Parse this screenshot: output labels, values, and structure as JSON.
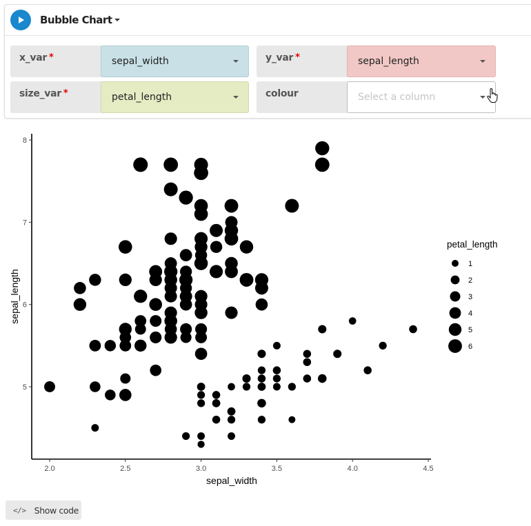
{
  "header": {
    "title": "Bubble Chart",
    "run_icon": "play-icon",
    "title_menu_icon": "caret-down-icon"
  },
  "fields": {
    "x_var": {
      "label": "x_var",
      "required": true,
      "required_mark": "*",
      "value": "sepal_width",
      "color": "#c9e0e6"
    },
    "y_var": {
      "label": "y_var",
      "required": true,
      "required_mark": "*",
      "value": "sepal_length",
      "color": "#f1c8c6"
    },
    "size_var": {
      "label": "size_var",
      "required": true,
      "required_mark": "*",
      "value": "petal_length",
      "color": "#e5ebc3"
    },
    "colour": {
      "label": "colour",
      "required": false,
      "value": "",
      "placeholder": "Select a column",
      "color": "#ffffff"
    }
  },
  "footer": {
    "show_code_label": "Show code",
    "code_icon": "</>"
  },
  "colors": {
    "accent": "#1a87cf",
    "required": "#e00000",
    "point": "#000000"
  },
  "chart_data": {
    "type": "scatter",
    "title": "",
    "xlabel": "sepal_width",
    "ylabel": "sepal_length",
    "xlim": [
      1.88,
      4.52
    ],
    "ylim": [
      4.2,
      8.08
    ],
    "xticks": [
      "2.0",
      "2.5",
      "3.0",
      "3.5",
      "4.0",
      "4.5"
    ],
    "xtick_values": [
      2.0,
      2.5,
      3.0,
      3.5,
      4.0,
      4.5
    ],
    "yticks": [
      "5",
      "6",
      "7",
      "8"
    ],
    "ytick_values": [
      5,
      6,
      7,
      8
    ],
    "grid": false,
    "size_legend": {
      "title": "petal_length",
      "position": "right",
      "entries": [
        1,
        2,
        3,
        4,
        5,
        6
      ]
    },
    "points": [
      {
        "x": 2.6,
        "y": 7.7,
        "size": 6.9
      },
      {
        "x": 2.8,
        "y": 7.7,
        "size": 6.7
      },
      {
        "x": 3.0,
        "y": 7.7,
        "size": 6.1
      },
      {
        "x": 3.0,
        "y": 7.6,
        "size": 6.6
      },
      {
        "x": 3.8,
        "y": 7.9,
        "size": 6.4
      },
      {
        "x": 3.8,
        "y": 7.7,
        "size": 6.7
      },
      {
        "x": 2.8,
        "y": 7.4,
        "size": 6.1
      },
      {
        "x": 2.9,
        "y": 7.3,
        "size": 6.3
      },
      {
        "x": 3.0,
        "y": 7.2,
        "size": 5.8
      },
      {
        "x": 3.0,
        "y": 7.1,
        "size": 5.9
      },
      {
        "x": 3.2,
        "y": 7.2,
        "size": 6.0
      },
      {
        "x": 3.6,
        "y": 7.2,
        "size": 6.1
      },
      {
        "x": 3.1,
        "y": 6.9,
        "size": 5.4
      },
      {
        "x": 3.2,
        "y": 6.9,
        "size": 5.7
      },
      {
        "x": 3.2,
        "y": 7.0,
        "size": 4.7
      },
      {
        "x": 3.2,
        "y": 6.8,
        "size": 5.9
      },
      {
        "x": 2.8,
        "y": 6.8,
        "size": 4.8
      },
      {
        "x": 3.0,
        "y": 6.8,
        "size": 5.5
      },
      {
        "x": 3.0,
        "y": 6.7,
        "size": 5.0
      },
      {
        "x": 3.1,
        "y": 6.7,
        "size": 4.4
      },
      {
        "x": 3.0,
        "y": 6.6,
        "size": 4.4
      },
      {
        "x": 2.9,
        "y": 6.6,
        "size": 4.6
      },
      {
        "x": 3.0,
        "y": 6.5,
        "size": 5.8
      },
      {
        "x": 2.8,
        "y": 6.5,
        "size": 4.6
      },
      {
        "x": 3.3,
        "y": 6.7,
        "size": 5.7
      },
      {
        "x": 2.5,
        "y": 6.7,
        "size": 5.8
      },
      {
        "x": 3.2,
        "y": 6.5,
        "size": 5.1
      },
      {
        "x": 3.2,
        "y": 6.4,
        "size": 5.3
      },
      {
        "x": 2.7,
        "y": 6.4,
        "size": 5.3
      },
      {
        "x": 2.8,
        "y": 6.4,
        "size": 5.6
      },
      {
        "x": 2.9,
        "y": 6.4,
        "size": 4.3
      },
      {
        "x": 3.1,
        "y": 6.4,
        "size": 5.5
      },
      {
        "x": 2.5,
        "y": 6.3,
        "size": 4.9
      },
      {
        "x": 2.3,
        "y": 6.3,
        "size": 4.4
      },
      {
        "x": 2.7,
        "y": 6.3,
        "size": 4.9
      },
      {
        "x": 2.8,
        "y": 6.3,
        "size": 5.1
      },
      {
        "x": 2.9,
        "y": 6.3,
        "size": 5.6
      },
      {
        "x": 3.3,
        "y": 6.3,
        "size": 6.0
      },
      {
        "x": 3.4,
        "y": 6.3,
        "size": 5.6
      },
      {
        "x": 3.4,
        "y": 6.2,
        "size": 5.4
      },
      {
        "x": 2.2,
        "y": 6.2,
        "size": 4.5
      },
      {
        "x": 2.8,
        "y": 6.2,
        "size": 4.8
      },
      {
        "x": 2.9,
        "y": 6.2,
        "size": 4.3
      },
      {
        "x": 2.8,
        "y": 6.1,
        "size": 4.7
      },
      {
        "x": 2.6,
        "y": 6.1,
        "size": 5.6
      },
      {
        "x": 3.0,
        "y": 6.1,
        "size": 4.9
      },
      {
        "x": 2.8,
        "y": 6.1,
        "size": 4.0
      },
      {
        "x": 2.9,
        "y": 6.1,
        "size": 4.7
      },
      {
        "x": 2.2,
        "y": 6.0,
        "size": 5.0
      },
      {
        "x": 2.7,
        "y": 6.0,
        "size": 5.1
      },
      {
        "x": 2.9,
        "y": 6.0,
        "size": 4.5
      },
      {
        "x": 3.0,
        "y": 6.0,
        "size": 4.8
      },
      {
        "x": 3.4,
        "y": 6.0,
        "size": 4.5
      },
      {
        "x": 2.8,
        "y": 5.9,
        "size": 4.8
      },
      {
        "x": 3.0,
        "y": 5.9,
        "size": 5.1
      },
      {
        "x": 3.2,
        "y": 5.9,
        "size": 4.8
      },
      {
        "x": 2.7,
        "y": 5.8,
        "size": 3.9
      },
      {
        "x": 2.6,
        "y": 5.8,
        "size": 4.0
      },
      {
        "x": 2.8,
        "y": 5.8,
        "size": 5.1
      },
      {
        "x": 2.7,
        "y": 5.8,
        "size": 4.1
      },
      {
        "x": 2.5,
        "y": 5.7,
        "size": 5.0
      },
      {
        "x": 2.6,
        "y": 5.7,
        "size": 3.5
      },
      {
        "x": 2.8,
        "y": 5.7,
        "size": 4.5
      },
      {
        "x": 2.9,
        "y": 5.7,
        "size": 4.2
      },
      {
        "x": 3.0,
        "y": 5.7,
        "size": 4.2
      },
      {
        "x": 2.5,
        "y": 5.6,
        "size": 3.9
      },
      {
        "x": 2.7,
        "y": 5.6,
        "size": 4.2
      },
      {
        "x": 2.8,
        "y": 5.6,
        "size": 4.9
      },
      {
        "x": 2.9,
        "y": 5.6,
        "size": 3.6
      },
      {
        "x": 3.0,
        "y": 5.6,
        "size": 4.1
      },
      {
        "x": 2.3,
        "y": 5.5,
        "size": 4.0
      },
      {
        "x": 2.4,
        "y": 5.5,
        "size": 3.8
      },
      {
        "x": 2.5,
        "y": 5.5,
        "size": 4.0
      },
      {
        "x": 2.6,
        "y": 5.5,
        "size": 4.4
      },
      {
        "x": 3.0,
        "y": 5.4,
        "size": 4.5
      },
      {
        "x": 2.7,
        "y": 5.2,
        "size": 3.9
      },
      {
        "x": 2.5,
        "y": 5.1,
        "size": 3.0
      },
      {
        "x": 2.0,
        "y": 5.0,
        "size": 3.5
      },
      {
        "x": 2.3,
        "y": 5.0,
        "size": 3.3
      },
      {
        "x": 2.4,
        "y": 4.9,
        "size": 3.3
      },
      {
        "x": 2.5,
        "y": 4.9,
        "size": 4.5
      },
      {
        "x": 2.3,
        "y": 4.5,
        "size": 1.3
      },
      {
        "x": 4.4,
        "y": 5.7,
        "size": 1.5
      },
      {
        "x": 4.0,
        "y": 5.8,
        "size": 1.2
      },
      {
        "x": 3.8,
        "y": 5.7,
        "size": 1.7
      },
      {
        "x": 4.2,
        "y": 5.5,
        "size": 1.4
      },
      {
        "x": 3.9,
        "y": 5.4,
        "size": 1.7
      },
      {
        "x": 3.7,
        "y": 5.4,
        "size": 1.5
      },
      {
        "x": 3.7,
        "y": 5.3,
        "size": 1.5
      },
      {
        "x": 3.5,
        "y": 5.5,
        "size": 1.3
      },
      {
        "x": 4.1,
        "y": 5.2,
        "size": 1.5
      },
      {
        "x": 3.8,
        "y": 5.1,
        "size": 1.9
      },
      {
        "x": 3.7,
        "y": 5.1,
        "size": 1.5
      },
      {
        "x": 3.4,
        "y": 5.4,
        "size": 1.7
      },
      {
        "x": 3.4,
        "y": 5.2,
        "size": 1.4
      },
      {
        "x": 3.5,
        "y": 5.2,
        "size": 1.5
      },
      {
        "x": 3.3,
        "y": 5.1,
        "size": 1.7
      },
      {
        "x": 3.4,
        "y": 5.1,
        "size": 1.5
      },
      {
        "x": 3.5,
        "y": 5.1,
        "size": 1.4
      },
      {
        "x": 3.6,
        "y": 5.0,
        "size": 1.4
      },
      {
        "x": 3.5,
        "y": 5.0,
        "size": 1.3
      },
      {
        "x": 3.4,
        "y": 5.0,
        "size": 1.6
      },
      {
        "x": 3.3,
        "y": 5.0,
        "size": 1.4
      },
      {
        "x": 3.2,
        "y": 5.0,
        "size": 1.2
      },
      {
        "x": 3.0,
        "y": 5.0,
        "size": 1.6
      },
      {
        "x": 3.1,
        "y": 4.9,
        "size": 1.5
      },
      {
        "x": 3.0,
        "y": 4.9,
        "size": 1.4
      },
      {
        "x": 3.1,
        "y": 4.8,
        "size": 1.6
      },
      {
        "x": 3.0,
        "y": 4.8,
        "size": 1.4
      },
      {
        "x": 3.4,
        "y": 4.8,
        "size": 1.9
      },
      {
        "x": 3.2,
        "y": 4.7,
        "size": 1.6
      },
      {
        "x": 3.1,
        "y": 4.6,
        "size": 1.5
      },
      {
        "x": 3.2,
        "y": 4.6,
        "size": 1.4
      },
      {
        "x": 3.4,
        "y": 4.6,
        "size": 1.4
      },
      {
        "x": 3.6,
        "y": 4.6,
        "size": 1.0
      },
      {
        "x": 2.9,
        "y": 4.4,
        "size": 1.4
      },
      {
        "x": 3.0,
        "y": 4.4,
        "size": 1.3
      },
      {
        "x": 3.2,
        "y": 4.4,
        "size": 1.3
      },
      {
        "x": 3.0,
        "y": 4.3,
        "size": 1.1
      }
    ]
  }
}
